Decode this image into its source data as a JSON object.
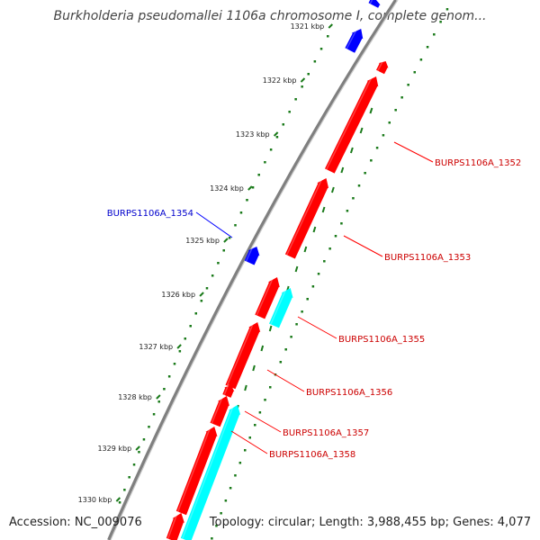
{
  "title": "Burkholderia pseudomallei 1106a chromosome I, complete genom...",
  "accession": "Accession: NC_009076",
  "topology": "Topology: circular; Length: 3,988,455 bp; Genes: 4,077",
  "colors": {
    "forward_gene": "#ff0000",
    "reverse_gene": "#0000ff",
    "rna_gene": "#00ffff",
    "backbone": "#7f7f7f",
    "ruler": "#1a7a1a"
  },
  "ruler_labels": [
    "1321 kbp",
    "1322 kbp",
    "1323 kbp",
    "1324 kbp",
    "1325 kbp",
    "1326 kbp",
    "1327 kbp",
    "1328 kbp",
    "1329 kbp",
    "1330 kbp"
  ],
  "gene_labels": [
    {
      "name": "BURPS1106A_1352",
      "strand": "forward"
    },
    {
      "name": "BURPS1106A_1353",
      "strand": "forward"
    },
    {
      "name": "BURPS1106A_1354",
      "strand": "reverse"
    },
    {
      "name": "BURPS1106A_1355",
      "strand": "forward"
    },
    {
      "name": "BURPS1106A_1356",
      "strand": "forward"
    },
    {
      "name": "BURPS1106A_1357",
      "strand": "forward"
    },
    {
      "name": "BURPS1106A_1358",
      "strand": "forward"
    }
  ]
}
